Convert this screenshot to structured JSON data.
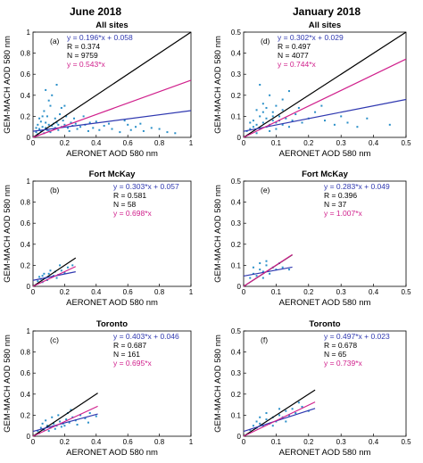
{
  "columns": [
    "June 2018",
    "January 2018"
  ],
  "colors": {
    "points": "#2a8fc8",
    "one_to_one": "#000000",
    "fit": "#2f38b0",
    "ratio": "#d0208c"
  },
  "chart_data": [
    {
      "id": "a",
      "type": "scatter",
      "column": "June 2018",
      "title": "All sites",
      "panel_label": "(a)",
      "xlabel": "AERONET AOD 580 nm",
      "ylabel": "GEM-MACH AOD 580 nm",
      "xlim": [
        0,
        1
      ],
      "ylim": [
        0,
        1
      ],
      "xticks": [
        "0",
        "0.2",
        "0.4",
        "0.6",
        "0.8",
        "1"
      ],
      "yticks": [
        "0",
        "0.2",
        "0.4",
        "0.6",
        "0.8",
        "1"
      ],
      "fit": {
        "slope": 0.196,
        "intercept": 0.058
      },
      "ratio_slope": 0.543,
      "line_xmax": 1,
      "annotations": [
        "y = 0.196*x + 0.058",
        "R = 0.374",
        "N = 9759",
        "y = 0.543*x"
      ],
      "points": [
        [
          0.02,
          0.05
        ],
        [
          0.04,
          0.08
        ],
        [
          0.06,
          0.1
        ],
        [
          0.08,
          0.09
        ],
        [
          0.1,
          0.12
        ],
        [
          0.12,
          0.11
        ],
        [
          0.05,
          0.15
        ],
        [
          0.09,
          0.2
        ],
        [
          0.13,
          0.08
        ],
        [
          0.15,
          0.14
        ],
        [
          0.18,
          0.1
        ],
        [
          0.2,
          0.12
        ],
        [
          0.22,
          0.09
        ],
        [
          0.25,
          0.11
        ],
        [
          0.07,
          0.25
        ],
        [
          0.11,
          0.3
        ],
        [
          0.14,
          0.18
        ],
        [
          0.17,
          0.22
        ],
        [
          0.03,
          0.12
        ],
        [
          0.06,
          0.2
        ],
        [
          0.1,
          0.06
        ],
        [
          0.16,
          0.07
        ],
        [
          0.19,
          0.16
        ],
        [
          0.24,
          0.14
        ],
        [
          0.28,
          0.08
        ],
        [
          0.3,
          0.1
        ],
        [
          0.33,
          0.12
        ],
        [
          0.35,
          0.06
        ],
        [
          0.38,
          0.09
        ],
        [
          0.42,
          0.07
        ],
        [
          0.45,
          0.11
        ],
        [
          0.5,
          0.08
        ],
        [
          0.55,
          0.05
        ],
        [
          0.6,
          0.12
        ],
        [
          0.65,
          0.1
        ],
        [
          0.7,
          0.06
        ],
        [
          0.75,
          0.09
        ],
        [
          0.8,
          0.08
        ],
        [
          0.85,
          0.05
        ],
        [
          0.9,
          0.04
        ],
        [
          0.12,
          0.4
        ],
        [
          0.1,
          0.35
        ],
        [
          0.2,
          0.3
        ],
        [
          0.08,
          0.45
        ],
        [
          0.15,
          0.5
        ],
        [
          0.18,
          0.28
        ],
        [
          0.03,
          0.03
        ],
        [
          0.05,
          0.06
        ],
        [
          0.07,
          0.04
        ],
        [
          0.09,
          0.07
        ],
        [
          0.11,
          0.05
        ],
        [
          0.13,
          0.13
        ],
        [
          0.04,
          0.18
        ],
        [
          0.21,
          0.2
        ],
        [
          0.26,
          0.18
        ],
        [
          0.32,
          0.2
        ],
        [
          0.4,
          0.15
        ],
        [
          0.48,
          0.13
        ],
        [
          0.58,
          0.16
        ],
        [
          0.02,
          0.09
        ],
        [
          0.08,
          0.14
        ],
        [
          0.14,
          0.09
        ],
        [
          0.16,
          0.12
        ],
        [
          0.23,
          0.06
        ],
        [
          0.27,
          0.13
        ],
        [
          0.36,
          0.14
        ],
        [
          0.62,
          0.07
        ],
        [
          0.68,
          0.13
        ]
      ]
    },
    {
      "id": "d",
      "type": "scatter",
      "column": "January 2018",
      "title": "All sites",
      "panel_label": "(d)",
      "xlabel": "AERONET AOD 580 nm",
      "ylabel": "GEM-MACH AOD 580 nm",
      "xlim": [
        0,
        0.5
      ],
      "ylim": [
        0,
        0.5
      ],
      "xticks": [
        "0",
        "0.1",
        "0.2",
        "0.3",
        "0.4",
        "0.5"
      ],
      "yticks": [
        "0",
        "0.1",
        "0.2",
        "0.3",
        "0.4",
        "0.5"
      ],
      "fit": {
        "slope": 0.302,
        "intercept": 0.029
      },
      "ratio_slope": 0.744,
      "line_xmax": 0.5,
      "annotations": [
        "y = 0.302*x + 0.029",
        "R = 0.497",
        "N = 4077",
        "y = 0.744*x"
      ],
      "points": [
        [
          0.01,
          0.03
        ],
        [
          0.02,
          0.04
        ],
        [
          0.03,
          0.05
        ],
        [
          0.04,
          0.06
        ],
        [
          0.05,
          0.04
        ],
        [
          0.06,
          0.07
        ],
        [
          0.07,
          0.05
        ],
        [
          0.08,
          0.06
        ],
        [
          0.09,
          0.08
        ],
        [
          0.1,
          0.07
        ],
        [
          0.03,
          0.08
        ],
        [
          0.05,
          0.1
        ],
        [
          0.07,
          0.09
        ],
        [
          0.09,
          0.12
        ],
        [
          0.11,
          0.1
        ],
        [
          0.12,
          0.06
        ],
        [
          0.13,
          0.09
        ],
        [
          0.14,
          0.05
        ],
        [
          0.15,
          0.08
        ],
        [
          0.16,
          0.11
        ],
        [
          0.18,
          0.07
        ],
        [
          0.2,
          0.09
        ],
        [
          0.04,
          0.13
        ],
        [
          0.06,
          0.16
        ],
        [
          0.08,
          0.2
        ],
        [
          0.1,
          0.15
        ],
        [
          0.12,
          0.18
        ],
        [
          0.14,
          0.22
        ],
        [
          0.05,
          0.25
        ],
        [
          0.02,
          0.07
        ],
        [
          0.25,
          0.08
        ],
        [
          0.28,
          0.06
        ],
        [
          0.3,
          0.1
        ],
        [
          0.32,
          0.07
        ],
        [
          0.35,
          0.05
        ],
        [
          0.38,
          0.09
        ],
        [
          0.45,
          0.06
        ],
        [
          0.08,
          0.03
        ],
        [
          0.1,
          0.04
        ],
        [
          0.12,
          0.13
        ],
        [
          0.17,
          0.14
        ],
        [
          0.22,
          0.12
        ],
        [
          0.24,
          0.15
        ],
        [
          0.06,
          0.12
        ],
        [
          0.09,
          0.1
        ],
        [
          0.11,
          0.08
        ],
        [
          0.04,
          0.02
        ],
        [
          0.07,
          0.14
        ]
      ]
    },
    {
      "id": "b",
      "type": "scatter",
      "column": "June 2018",
      "title": "Fort McKay",
      "panel_label": "(b)",
      "xlabel": "AERONET AOD 580 nm",
      "ylabel": "GEM-MACH AOD 580 nm",
      "xlim": [
        0,
        1
      ],
      "ylim": [
        0,
        1
      ],
      "xticks": [
        "0",
        "0.2",
        "0.4",
        "0.6",
        "0.8",
        "1"
      ],
      "yticks": [
        "0",
        "0.2",
        "0.4",
        "0.6",
        "0.8",
        "1"
      ],
      "fit": {
        "slope": 0.303,
        "intercept": 0.057
      },
      "ratio_slope": 0.698,
      "line_xmax": 0.27,
      "annotations": [
        "y = 0.303*x + 0.057",
        "R = 0.581",
        "N = 58",
        "y = 0.698*x"
      ],
      "points": [
        [
          0.03,
          0.05
        ],
        [
          0.05,
          0.07
        ],
        [
          0.06,
          0.1
        ],
        [
          0.08,
          0.08
        ],
        [
          0.1,
          0.12
        ],
        [
          0.12,
          0.09
        ],
        [
          0.14,
          0.14
        ],
        [
          0.16,
          0.11
        ],
        [
          0.18,
          0.15
        ],
        [
          0.2,
          0.13
        ],
        [
          0.22,
          0.18
        ],
        [
          0.25,
          0.2
        ],
        [
          0.04,
          0.09
        ],
        [
          0.07,
          0.12
        ],
        [
          0.09,
          0.06
        ],
        [
          0.11,
          0.15
        ],
        [
          0.13,
          0.1
        ],
        [
          0.15,
          0.08
        ],
        [
          0.17,
          0.2
        ],
        [
          0.06,
          0.04
        ]
      ]
    },
    {
      "id": "e",
      "type": "scatter",
      "column": "January 2018",
      "title": "Fort McKay",
      "panel_label": "(e)",
      "xlabel": "AERONET AOD 580 nm",
      "ylabel": "GEM-MACH AOD 580 nm",
      "xlim": [
        0,
        0.5
      ],
      "ylim": [
        0,
        0.5
      ],
      "xticks": [
        "0",
        "0.1",
        "0.2",
        "0.3",
        "0.4",
        "0.5"
      ],
      "yticks": [
        "0",
        "0.1",
        "0.2",
        "0.3",
        "0.4",
        "0.5"
      ],
      "fit": {
        "slope": 0.283,
        "intercept": 0.049
      },
      "ratio_slope": 1.007,
      "line_xmax": 0.15,
      "annotations": [
        "y = 0.283*x + 0.049",
        "R = 0.396",
        "N = 37",
        "y = 1.007*x"
      ],
      "points": [
        [
          0.02,
          0.04
        ],
        [
          0.03,
          0.06
        ],
        [
          0.04,
          0.05
        ],
        [
          0.05,
          0.08
        ],
        [
          0.06,
          0.07
        ],
        [
          0.07,
          0.1
        ],
        [
          0.08,
          0.06
        ],
        [
          0.09,
          0.09
        ],
        [
          0.1,
          0.08
        ],
        [
          0.11,
          0.11
        ],
        [
          0.12,
          0.09
        ],
        [
          0.14,
          0.08
        ],
        [
          0.03,
          0.09
        ],
        [
          0.05,
          0.11
        ],
        [
          0.07,
          0.12
        ],
        [
          0.06,
          0.04
        ]
      ]
    },
    {
      "id": "c",
      "type": "scatter",
      "column": "June 2018",
      "title": "Toronto",
      "panel_label": "(c)",
      "xlabel": "AERONET AOD 580 nm",
      "ylabel": "GEM-MACH AOD 580 nm",
      "xlim": [
        0,
        1
      ],
      "ylim": [
        0,
        1
      ],
      "xticks": [
        "0",
        "0.2",
        "0.4",
        "0.6",
        "0.8",
        "1"
      ],
      "yticks": [
        "0",
        "0.2",
        "0.4",
        "0.6",
        "0.8",
        "1"
      ],
      "fit": {
        "slope": 0.403,
        "intercept": 0.046
      },
      "ratio_slope": 0.695,
      "line_xmax": 0.41,
      "annotations": [
        "y = 0.403*x + 0.046",
        "R = 0.687",
        "N = 161",
        "y = 0.695*x"
      ],
      "points": [
        [
          0.03,
          0.05
        ],
        [
          0.05,
          0.08
        ],
        [
          0.07,
          0.06
        ],
        [
          0.09,
          0.1
        ],
        [
          0.11,
          0.08
        ],
        [
          0.13,
          0.12
        ],
        [
          0.15,
          0.1
        ],
        [
          0.17,
          0.14
        ],
        [
          0.19,
          0.12
        ],
        [
          0.21,
          0.16
        ],
        [
          0.23,
          0.13
        ],
        [
          0.25,
          0.18
        ],
        [
          0.27,
          0.15
        ],
        [
          0.3,
          0.2
        ],
        [
          0.33,
          0.17
        ],
        [
          0.36,
          0.22
        ],
        [
          0.4,
          0.19
        ],
        [
          0.06,
          0.12
        ],
        [
          0.08,
          0.15
        ],
        [
          0.1,
          0.05
        ],
        [
          0.12,
          0.18
        ],
        [
          0.14,
          0.07
        ],
        [
          0.16,
          0.2
        ],
        [
          0.2,
          0.1
        ],
        [
          0.24,
          0.25
        ],
        [
          0.28,
          0.11
        ],
        [
          0.04,
          0.03
        ],
        [
          0.18,
          0.09
        ],
        [
          0.22,
          0.22
        ],
        [
          0.35,
          0.13
        ]
      ]
    },
    {
      "id": "f",
      "type": "scatter",
      "column": "January 2018",
      "title": "Toronto",
      "panel_label": "(f)",
      "xlabel": "AERONET AOD 580 nm",
      "ylabel": "GEM-MACH AOD 580 nm",
      "xlim": [
        0,
        0.5
      ],
      "ylim": [
        0,
        0.5
      ],
      "xticks": [
        "0",
        "0.1",
        "0.2",
        "0.3",
        "0.4",
        "0.5"
      ],
      "yticks": [
        "0",
        "0.1",
        "0.2",
        "0.3",
        "0.4",
        "0.5"
      ],
      "fit": {
        "slope": 0.497,
        "intercept": 0.023
      },
      "ratio_slope": 0.739,
      "line_xmax": 0.22,
      "annotations": [
        "y = 0.497*x + 0.023",
        "R = 0.678",
        "N = 65",
        "y = 0.739*x"
      ],
      "points": [
        [
          0.02,
          0.03
        ],
        [
          0.03,
          0.05
        ],
        [
          0.04,
          0.04
        ],
        [
          0.05,
          0.06
        ],
        [
          0.06,
          0.05
        ],
        [
          0.07,
          0.08
        ],
        [
          0.08,
          0.06
        ],
        [
          0.09,
          0.09
        ],
        [
          0.1,
          0.07
        ],
        [
          0.11,
          0.1
        ],
        [
          0.12,
          0.09
        ],
        [
          0.13,
          0.12
        ],
        [
          0.14,
          0.1
        ],
        [
          0.15,
          0.13
        ],
        [
          0.16,
          0.11
        ],
        [
          0.18,
          0.14
        ],
        [
          0.2,
          0.12
        ],
        [
          0.05,
          0.09
        ],
        [
          0.07,
          0.11
        ],
        [
          0.09,
          0.05
        ],
        [
          0.11,
          0.13
        ],
        [
          0.13,
          0.07
        ],
        [
          0.17,
          0.16
        ],
        [
          0.04,
          0.07
        ]
      ]
    }
  ]
}
